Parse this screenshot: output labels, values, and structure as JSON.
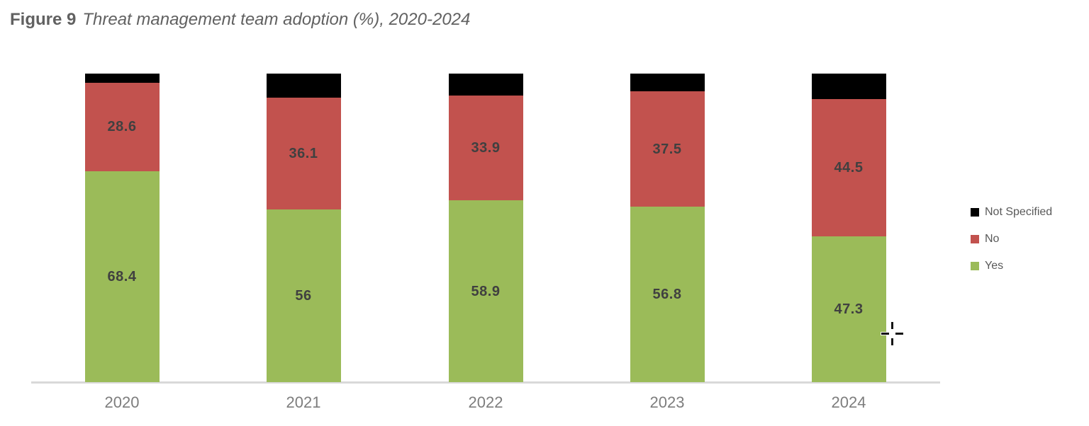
{
  "figure": {
    "title_prefix": "Figure 9",
    "title_text": "Threat management team adoption (%), 2020-2024"
  },
  "chart_data": {
    "type": "bar",
    "subtype": "stacked-column",
    "title": "Figure 9 Threat management team adoption (%), 2020-2024",
    "categories": [
      "2020",
      "2021",
      "2022",
      "2023",
      "2024"
    ],
    "series": [
      {
        "name": "Yes",
        "color": "#9BBB59",
        "values": [
          68.4,
          56,
          58.9,
          56.8,
          47.3
        ],
        "data_labels": [
          "68.4",
          "56",
          "58.9",
          "56.8",
          "47.3"
        ]
      },
      {
        "name": "No",
        "color": "#C2524E",
        "values": [
          28.6,
          36.1,
          33.9,
          37.5,
          44.5
        ],
        "data_labels": [
          "28.6",
          "36.1",
          "33.9",
          "37.5",
          "44.5"
        ]
      },
      {
        "name": "Not Specified",
        "color": "#000000",
        "values": [
          3.0,
          7.9,
          7.2,
          5.7,
          8.2
        ],
        "data_labels": [
          "",
          "",
          "",
          "",
          ""
        ]
      }
    ],
    "ylim": [
      0,
      100
    ],
    "grid": false,
    "value_label_color": "#404040",
    "axis_label_color": "#7d7d7d",
    "legend": {
      "position": "right",
      "items": [
        {
          "label": "Not Specified",
          "color": "#000000"
        },
        {
          "label": "No",
          "color": "#C2524E"
        },
        {
          "label": "Yes",
          "color": "#9BBB59"
        }
      ]
    }
  },
  "cursor": {
    "type": "precision-select-crosshair"
  }
}
